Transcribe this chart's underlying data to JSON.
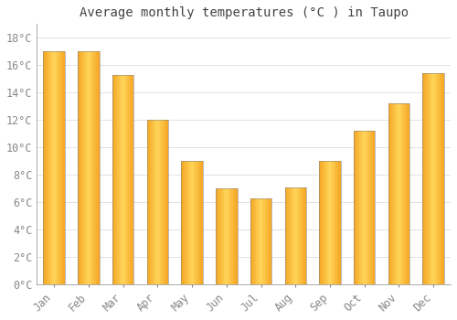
{
  "title": "Average monthly temperatures (°C ) in Taupo",
  "months": [
    "Jan",
    "Feb",
    "Mar",
    "Apr",
    "May",
    "Jun",
    "Jul",
    "Aug",
    "Sep",
    "Oct",
    "Nov",
    "Dec"
  ],
  "temperatures": [
    17.0,
    17.0,
    15.3,
    12.0,
    9.0,
    7.0,
    6.3,
    7.1,
    9.0,
    11.2,
    13.2,
    15.4
  ],
  "bar_color_left": "#F5A623",
  "bar_color_center": "#FFD55A",
  "bar_color_right": "#E8900A",
  "bar_border_color": "#888888",
  "background_color": "#FFFFFF",
  "grid_color": "#DDDDDD",
  "tick_label_color": "#888888",
  "title_color": "#444444",
  "ylim": [
    0,
    19
  ],
  "yticks": [
    0,
    2,
    4,
    6,
    8,
    10,
    12,
    14,
    16,
    18
  ],
  "title_fontsize": 10,
  "tick_fontsize": 8.5
}
